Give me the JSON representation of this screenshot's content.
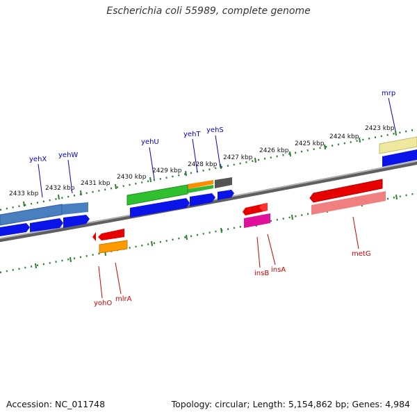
{
  "title": "Escherichia coli 55989, complete genome",
  "footer": {
    "accession": "Accession: NC_011748",
    "summary": "Topology: circular; Length: 5,154,862 bp; Genes: 4,984"
  },
  "ruler": {
    "ticks": [
      "2423 kbp",
      "2424 kbp",
      "2425 kbp",
      "2426 kbp",
      "2427 kbp",
      "2428 kbp",
      "2429 kbp",
      "2430 kbp",
      "2431 kbp",
      "2432 kbp",
      "2433 kbp"
    ]
  },
  "genes": {
    "forward": [
      "mrp",
      "yehS",
      "yehT",
      "yehU",
      "yehW",
      "yehX"
    ],
    "reverse": [
      "metG",
      "insA",
      "insB",
      "mlrA",
      "yohO"
    ]
  },
  "colors": {
    "forward_label": "#0000cc",
    "reverse_label": "#cc0000",
    "ruler": "#2e7d32",
    "backbone": "#7a7a7a"
  }
}
